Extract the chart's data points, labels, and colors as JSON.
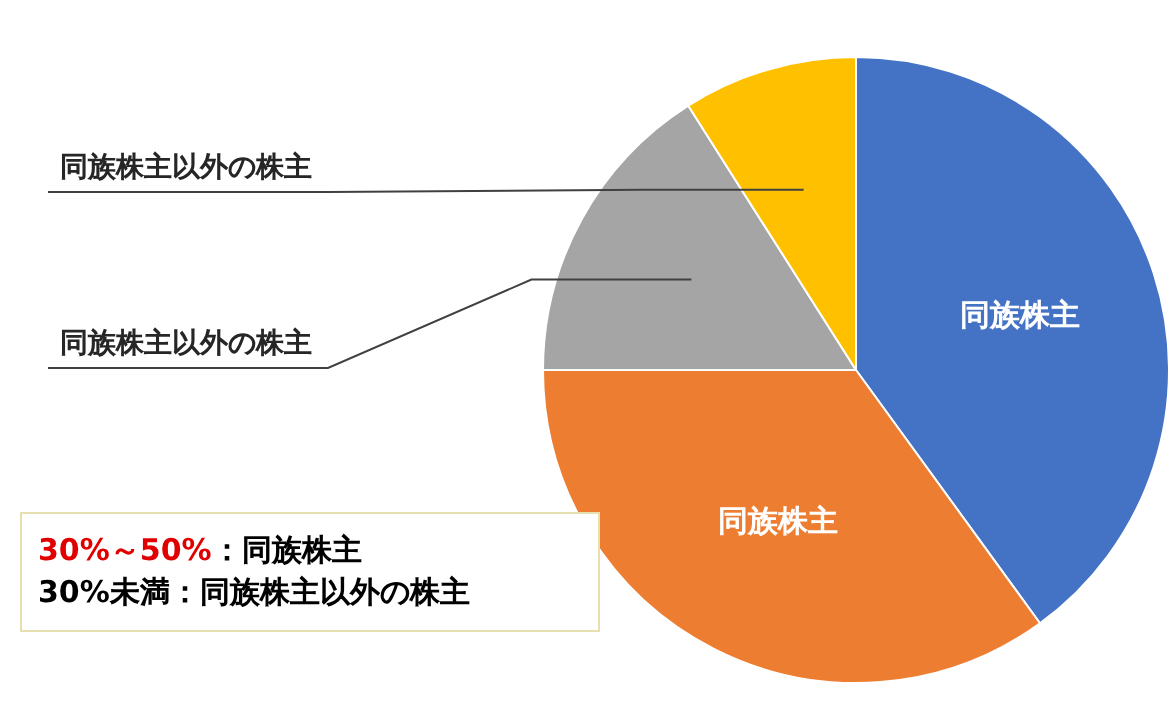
{
  "chart_data": {
    "type": "pie",
    "categories": [
      "同族株主",
      "同族株主",
      "同族株主以外の株主",
      "同族株主以外の株主"
    ],
    "values": [
      40,
      35,
      16,
      9
    ],
    "colors": [
      "#4472c4",
      "#ed7d31",
      "#a5a5a5",
      "#ffc000"
    ],
    "legend": false,
    "annotations": [
      "30%～50%：同族株主",
      "30%未満：同族株主以外の株主"
    ]
  }
}
